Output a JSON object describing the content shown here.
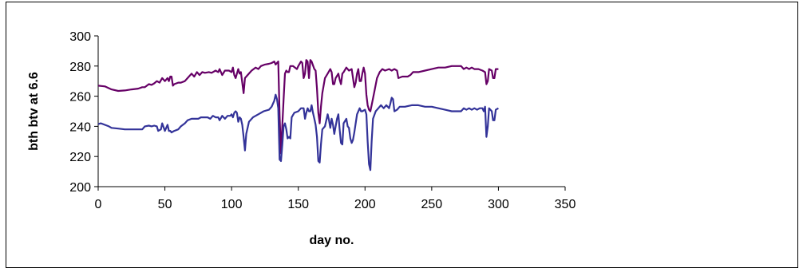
{
  "chart_data": {
    "type": "line",
    "title": "",
    "xlabel": "day no.",
    "ylabel": "bth btv at 6.6",
    "xlim": [
      0,
      350
    ],
    "ylim": [
      200,
      300
    ],
    "x_ticks": [
      0,
      50,
      100,
      150,
      200,
      250,
      300,
      350
    ],
    "y_ticks": [
      200,
      220,
      240,
      260,
      280,
      300
    ],
    "grid": false,
    "legend": "none",
    "series": [
      {
        "color": "#660066",
        "points": [
          [
            0,
            267
          ],
          [
            5,
            266.5
          ],
          [
            10,
            264.5
          ],
          [
            15,
            263.5
          ],
          [
            20,
            263.8
          ],
          [
            25,
            264.5
          ],
          [
            30,
            265
          ],
          [
            33,
            266
          ],
          [
            35,
            266
          ],
          [
            38,
            268
          ],
          [
            40,
            267.5
          ],
          [
            42,
            268.5
          ],
          [
            44,
            270
          ],
          [
            46,
            269
          ],
          [
            48,
            272
          ],
          [
            50,
            270
          ],
          [
            52,
            272
          ],
          [
            53,
            270
          ],
          [
            54,
            273
          ],
          [
            55,
            273
          ],
          [
            56,
            267
          ],
          [
            57,
            268
          ],
          [
            60,
            269
          ],
          [
            62,
            269
          ],
          [
            65,
            270
          ],
          [
            67,
            272
          ],
          [
            70,
            275
          ],
          [
            72,
            273
          ],
          [
            74,
            276
          ],
          [
            76,
            274
          ],
          [
            78,
            276
          ],
          [
            80,
            275.5
          ],
          [
            83,
            276
          ],
          [
            85,
            275.5
          ],
          [
            88,
            277
          ],
          [
            90,
            276
          ],
          [
            91,
            278
          ],
          [
            93,
            274
          ],
          [
            95,
            277
          ],
          [
            98,
            277
          ],
          [
            100,
            276
          ],
          [
            101,
            279
          ],
          [
            102,
            274
          ],
          [
            103,
            272
          ],
          [
            104,
            275
          ],
          [
            105,
            278
          ],
          [
            106,
            275
          ],
          [
            107,
            276
          ],
          [
            108,
            269
          ],
          [
            109,
            262
          ],
          [
            110,
            272
          ],
          [
            112,
            274
          ],
          [
            115,
            277
          ],
          [
            118,
            279
          ],
          [
            120,
            278
          ],
          [
            122,
            280
          ],
          [
            125,
            281
          ],
          [
            128,
            281.5
          ],
          [
            130,
            282
          ],
          [
            132,
            283
          ],
          [
            133,
            281
          ],
          [
            135,
            283
          ],
          [
            136,
            247
          ],
          [
            137,
            222
          ],
          [
            138,
            241
          ],
          [
            139,
            258
          ],
          [
            140,
            275
          ],
          [
            141,
            277
          ],
          [
            142,
            276
          ],
          [
            143,
            276
          ],
          [
            144,
            280
          ],
          [
            146,
            280
          ],
          [
            149,
            278
          ],
          [
            150,
            280
          ],
          [
            152,
            283
          ],
          [
            153,
            282
          ],
          [
            154,
            272
          ],
          [
            155,
            275
          ],
          [
            156,
            284
          ],
          [
            157,
            283
          ],
          [
            158,
            272
          ],
          [
            159,
            284
          ],
          [
            160,
            283
          ],
          [
            162,
            278
          ],
          [
            163,
            277
          ],
          [
            164,
            265
          ],
          [
            165,
            249
          ],
          [
            166,
            242
          ],
          [
            167,
            253
          ],
          [
            168,
            262
          ],
          [
            170,
            272
          ],
          [
            172,
            275
          ],
          [
            174,
            278
          ],
          [
            175,
            276
          ],
          [
            176,
            268
          ],
          [
            177,
            268
          ],
          [
            178,
            272
          ],
          [
            180,
            275
          ],
          [
            181,
            271
          ],
          [
            182,
            268
          ],
          [
            183,
            275
          ],
          [
            184,
            276
          ],
          [
            186,
            279
          ],
          [
            188,
            277
          ],
          [
            190,
            278
          ],
          [
            192,
            266
          ],
          [
            193,
            269
          ],
          [
            194,
            275
          ],
          [
            195,
            278
          ],
          [
            196,
            270
          ],
          [
            197,
            270
          ],
          [
            198,
            275
          ],
          [
            199,
            279
          ],
          [
            200,
            275
          ],
          [
            201,
            261
          ],
          [
            202,
            254
          ],
          [
            203,
            251
          ],
          [
            204,
            250
          ],
          [
            205,
            254
          ],
          [
            207,
            263
          ],
          [
            209,
            272
          ],
          [
            211,
            276
          ],
          [
            213,
            278
          ],
          [
            215,
            277
          ],
          [
            218,
            278
          ],
          [
            220,
            277
          ],
          [
            222,
            278
          ],
          [
            224,
            277
          ],
          [
            225,
            272
          ],
          [
            228,
            273
          ],
          [
            232,
            273
          ],
          [
            234,
            274
          ],
          [
            236,
            276
          ],
          [
            240,
            276
          ],
          [
            245,
            277
          ],
          [
            250,
            278
          ],
          [
            255,
            279
          ],
          [
            260,
            279
          ],
          [
            265,
            280
          ],
          [
            270,
            280
          ],
          [
            272,
            280
          ],
          [
            274,
            278
          ],
          [
            276,
            279
          ],
          [
            278,
            278
          ],
          [
            280,
            279
          ],
          [
            282,
            278
          ],
          [
            285,
            278
          ],
          [
            288,
            277
          ],
          [
            290,
            276
          ],
          [
            291,
            268
          ],
          [
            292,
            270
          ],
          [
            293,
            278
          ],
          [
            295,
            277
          ],
          [
            296,
            272
          ],
          [
            297,
            272
          ],
          [
            298,
            278
          ],
          [
            300,
            278
          ]
        ]
      },
      {
        "color": "#333399",
        "points": [
          [
            0,
            241.5
          ],
          [
            2,
            242
          ],
          [
            5,
            241
          ],
          [
            8,
            240
          ],
          [
            10,
            239
          ],
          [
            15,
            238.5
          ],
          [
            20,
            238
          ],
          [
            25,
            238
          ],
          [
            30,
            238
          ],
          [
            33,
            238
          ],
          [
            35,
            240
          ],
          [
            38,
            240.5
          ],
          [
            40,
            240
          ],
          [
            42,
            240.5
          ],
          [
            44,
            240
          ],
          [
            45,
            237
          ],
          [
            47,
            238
          ],
          [
            48,
            242
          ],
          [
            50,
            237
          ],
          [
            52,
            241
          ],
          [
            53,
            237
          ],
          [
            54,
            237
          ],
          [
            55,
            236
          ],
          [
            57,
            237
          ],
          [
            60,
            238
          ],
          [
            62,
            240
          ],
          [
            65,
            242
          ],
          [
            67,
            244
          ],
          [
            70,
            245
          ],
          [
            72,
            245
          ],
          [
            75,
            245
          ],
          [
            77,
            246
          ],
          [
            80,
            246
          ],
          [
            82,
            246
          ],
          [
            84,
            245
          ],
          [
            86,
            247
          ],
          [
            88,
            246
          ],
          [
            90,
            246
          ],
          [
            91,
            244
          ],
          [
            93,
            247
          ],
          [
            95,
            245
          ],
          [
            97,
            247
          ],
          [
            99,
            247
          ],
          [
            100,
            248
          ],
          [
            101,
            246
          ],
          [
            102,
            249
          ],
          [
            103,
            250
          ],
          [
            104,
            249
          ],
          [
            105,
            243
          ],
          [
            106,
            246
          ],
          [
            107,
            245
          ],
          [
            108,
            241
          ],
          [
            109,
            233
          ],
          [
            110,
            224
          ],
          [
            111,
            235
          ],
          [
            113,
            243
          ],
          [
            116,
            246
          ],
          [
            120,
            248
          ],
          [
            124,
            250
          ],
          [
            128,
            251
          ],
          [
            130,
            253
          ],
          [
            132,
            257
          ],
          [
            133,
            261
          ],
          [
            134,
            258
          ],
          [
            135,
            252
          ],
          [
            136,
            218
          ],
          [
            137,
            217
          ],
          [
            138,
            228
          ],
          [
            139,
            240
          ],
          [
            140,
            242
          ],
          [
            141,
            238
          ],
          [
            142,
            232
          ],
          [
            143,
            233
          ],
          [
            144,
            232
          ],
          [
            145,
            246
          ],
          [
            147,
            249
          ],
          [
            150,
            250
          ],
          [
            152,
            252
          ],
          [
            154,
            252
          ],
          [
            155,
            245
          ],
          [
            156,
            249
          ],
          [
            157,
            252
          ],
          [
            158,
            250
          ],
          [
            159,
            250
          ],
          [
            160,
            254
          ],
          [
            161,
            249
          ],
          [
            162,
            245
          ],
          [
            163,
            241
          ],
          [
            164,
            233
          ],
          [
            165,
            217
          ],
          [
            166,
            216
          ],
          [
            167,
            228
          ],
          [
            168,
            238
          ],
          [
            170,
            240
          ],
          [
            172,
            248
          ],
          [
            173,
            244
          ],
          [
            174,
            239
          ],
          [
            175,
            245
          ],
          [
            176,
            241
          ],
          [
            177,
            235
          ],
          [
            178,
            240
          ],
          [
            179,
            245
          ],
          [
            180,
            248
          ],
          [
            181,
            238
          ],
          [
            182,
            229
          ],
          [
            183,
            228
          ],
          [
            184,
            242
          ],
          [
            186,
            245
          ],
          [
            187,
            240
          ],
          [
            188,
            239
          ],
          [
            189,
            232
          ],
          [
            190,
            229
          ],
          [
            191,
            231
          ],
          [
            192,
            236
          ],
          [
            194,
            248
          ],
          [
            196,
            252
          ],
          [
            197,
            250
          ],
          [
            198,
            250
          ],
          [
            200,
            251
          ],
          [
            201,
            248
          ],
          [
            202,
            230
          ],
          [
            203,
            215
          ],
          [
            204,
            211
          ],
          [
            205,
            230
          ],
          [
            206,
            245
          ],
          [
            208,
            250
          ],
          [
            210,
            252
          ],
          [
            212,
            254
          ],
          [
            214,
            252
          ],
          [
            216,
            254
          ],
          [
            218,
            252
          ],
          [
            219,
            255
          ],
          [
            220,
            259
          ],
          [
            221,
            258
          ],
          [
            222,
            250
          ],
          [
            224,
            251
          ],
          [
            226,
            253
          ],
          [
            230,
            253
          ],
          [
            235,
            254
          ],
          [
            240,
            254
          ],
          [
            245,
            253
          ],
          [
            250,
            253
          ],
          [
            255,
            252
          ],
          [
            260,
            251
          ],
          [
            265,
            250
          ],
          [
            270,
            250
          ],
          [
            272,
            250
          ],
          [
            274,
            252
          ],
          [
            276,
            251
          ],
          [
            278,
            252
          ],
          [
            280,
            251
          ],
          [
            282,
            252
          ],
          [
            284,
            251
          ],
          [
            286,
            252
          ],
          [
            288,
            252
          ],
          [
            289,
            250
          ],
          [
            290,
            253
          ],
          [
            291,
            233
          ],
          [
            292,
            240
          ],
          [
            293,
            252
          ],
          [
            295,
            250
          ],
          [
            296,
            244
          ],
          [
            297,
            244
          ],
          [
            298,
            251
          ],
          [
            300,
            252
          ]
        ]
      }
    ]
  }
}
